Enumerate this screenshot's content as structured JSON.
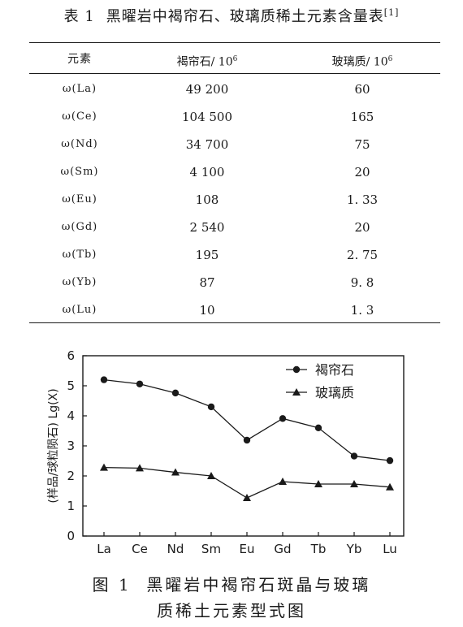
{
  "table": {
    "label": "表 1",
    "title": "黑曜岩中褐帘石、玻璃质稀土元素含量表",
    "ref": "[1]",
    "columns": [
      "元素",
      "褐帘石/ 10",
      "玻璃质/ 10"
    ],
    "column_exponent": "6",
    "rows": [
      [
        "ω(La)",
        "49 200",
        "60"
      ],
      [
        "ω(Ce)",
        "104 500",
        "165"
      ],
      [
        "ω(Nd)",
        "34 700",
        "75"
      ],
      [
        "ω(Sm)",
        "4 100",
        "20"
      ],
      [
        "ω(Eu)",
        "108",
        "1. 33"
      ],
      [
        "ω(Gd)",
        "2 540",
        "20"
      ],
      [
        "ω(Tb)",
        "195",
        "2. 75"
      ],
      [
        "ω(Yb)",
        "87",
        "9. 8"
      ],
      [
        "ω(Lu)",
        "10",
        "1. 3"
      ]
    ]
  },
  "chart_data": {
    "type": "line",
    "title": "",
    "xlabel": "",
    "ylabel": "(样品/球粒陨石) Lg(X)",
    "categories": [
      "La",
      "Ce",
      "Nd",
      "Sm",
      "Eu",
      "Gd",
      "Tb",
      "Yb",
      "Lu"
    ],
    "ylim": [
      0,
      6
    ],
    "yticks": [
      0,
      1,
      2,
      3,
      4,
      5,
      6
    ],
    "legend_position": "top-right",
    "series": [
      {
        "name": "褐帘石",
        "marker": "circle",
        "values": [
          5.2,
          5.06,
          4.76,
          4.3,
          3.19,
          3.91,
          3.6,
          2.66,
          2.51
        ]
      },
      {
        "name": "玻璃质",
        "marker": "triangle",
        "values": [
          2.28,
          2.26,
          2.12,
          2.0,
          1.27,
          1.81,
          1.73,
          1.73,
          1.63
        ]
      }
    ]
  },
  "figure": {
    "label": "图 1",
    "caption_line1": "黑曜岩中褐帘石斑晶与玻璃",
    "caption_line2": "质稀土元素型式图"
  }
}
